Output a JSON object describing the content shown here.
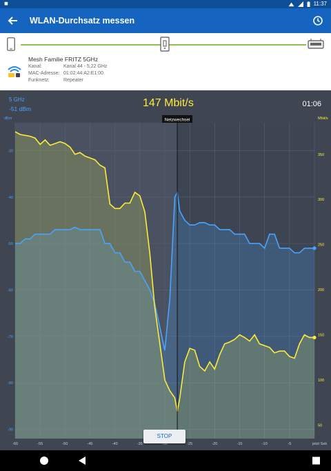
{
  "status": {
    "left_icon": "app-notification-icon",
    "time": "11:37"
  },
  "appbar": {
    "title": "WLAN-Durchsatz messen"
  },
  "network": {
    "name": "Mesh Familie FRITZ 5GHz",
    "fields": [
      {
        "label": "Kanal:",
        "value": "Kanal 44 - 5,22 GHz"
      },
      {
        "label": "MAC-Adresse:",
        "value": "01:02:44:A2:E1:00"
      },
      {
        "label": "Funknetz:",
        "value": "Repeater"
      }
    ]
  },
  "live": {
    "band": "5 GHz",
    "rssi": "-51 dBm",
    "throughput": "147 Mbit/s",
    "elapsed": "01:06"
  },
  "stop_label": "STOP",
  "colors": {
    "rssi": "#4aa3ff",
    "throughput": "#ffeb3b",
    "appbar": "#1565c0"
  },
  "chart_data": {
    "type": "line",
    "xlabel": "",
    "x_ticks": [
      "-60",
      "-55",
      "-50",
      "-45",
      "-40",
      "-35",
      "-30",
      "-25",
      "-20",
      "-15",
      "-10",
      "-5",
      "jetzt Sek"
    ],
    "xlim": [
      -60,
      0
    ],
    "left_axis": {
      "unit": "dBm",
      "ticks": [
        "-30",
        "-40",
        "-50",
        "-60",
        "-70",
        "-80",
        "-90"
      ],
      "range": [
        -92,
        -24
      ]
    },
    "right_axis": {
      "unit": "Mbit/s",
      "ticks": [
        "350",
        "300",
        "250",
        "200",
        "150",
        "100",
        "50"
      ],
      "range": [
        35,
        385
      ]
    },
    "annotation": {
      "label": "Netzwechsel",
      "x": -27.5
    },
    "series": [
      {
        "axis": "left",
        "x": [
          -60,
          -59,
          -58,
          -57,
          -56,
          -55,
          -54,
          -53,
          -52,
          -51,
          -50,
          -49,
          -48,
          -47,
          -46,
          -45,
          -44,
          -43,
          -42,
          -41,
          -40,
          -39,
          -38,
          -37,
          -36,
          -35,
          -34,
          -33,
          -32,
          -31,
          -30,
          -29,
          -28,
          -27.5,
          -27,
          -26,
          -25,
          -24,
          -23,
          -22,
          -21,
          -20,
          -19,
          -18,
          -17,
          -16,
          -15,
          -14,
          -13,
          -12,
          -11,
          -10,
          -9,
          -8,
          -7,
          -6,
          -5,
          -4,
          -3,
          -2,
          -1,
          0
        ],
        "values": [
          -50,
          -50,
          -49,
          -49,
          -48,
          -48,
          -48,
          -48,
          -47,
          -47,
          -47,
          -47,
          -46.5,
          -47,
          -47,
          -47,
          -47,
          -47,
          -50,
          -50,
          -52,
          -52,
          -54,
          -54,
          -56,
          -56,
          -58,
          -60,
          -63,
          -68,
          -73,
          -62,
          -40,
          -39,
          -43,
          -45,
          -46,
          -46,
          -45.5,
          -45.5,
          -46,
          -46,
          -47,
          -47,
          -47,
          -48,
          -48,
          -48,
          -50,
          -50,
          -50,
          -51,
          -48,
          -48,
          -51,
          -51,
          -51,
          -52,
          -52,
          -51,
          -51,
          -51
        ]
      },
      {
        "axis": "right",
        "x": [
          -60,
          -59,
          -58,
          -57,
          -56,
          -55,
          -54,
          -53,
          -52,
          -51,
          -50,
          -49,
          -48,
          -47,
          -46,
          -45,
          -44,
          -43,
          -42,
          -41,
          -40,
          -39,
          -38,
          -37,
          -36,
          -35,
          -34,
          -33,
          -32,
          -31,
          -30,
          -29,
          -28,
          -27.5,
          -27,
          -26,
          -25,
          -24,
          -23,
          -22,
          -21,
          -20,
          -19,
          -18,
          -17,
          -16,
          -15,
          -14,
          -13,
          -12,
          -11,
          -10,
          -9,
          -8,
          -7,
          -6,
          -5,
          -4,
          -3,
          -2,
          -1,
          0
        ],
        "values": [
          375,
          372,
          371,
          370,
          368,
          361,
          366,
          360,
          362,
          364,
          362,
          358,
          350,
          352,
          348,
          346,
          344,
          338,
          335,
          295,
          290,
          290,
          296,
          296,
          308,
          304,
          286,
          240,
          180,
          140,
          100,
          88,
          80,
          65,
          80,
          120,
          135,
          133,
          115,
          110,
          120,
          112,
          128,
          140,
          142,
          145,
          150,
          147,
          143,
          150,
          140,
          138,
          136,
          130,
          132,
          132,
          126,
          124,
          140,
          150,
          147,
          147
        ]
      }
    ]
  }
}
